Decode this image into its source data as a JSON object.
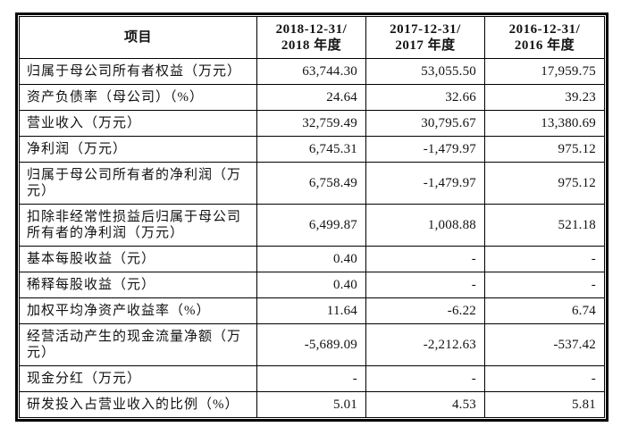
{
  "header": {
    "item_col": "项目",
    "periods": [
      {
        "line1": "2018-12-31/",
        "line2": "2018 年度"
      },
      {
        "line1": "2017-12-31/",
        "line2": "2017 年度"
      },
      {
        "line1": "2016-12-31/",
        "line2": "2016 年度"
      }
    ]
  },
  "rows": [
    {
      "label": "归属于母公司所有者权益（万元）",
      "y2018": "63,744.30",
      "y2017": "53,055.50",
      "y2016": "17,959.75"
    },
    {
      "label": "资产负债率（母公司）（%）",
      "y2018": "24.64",
      "y2017": "32.66",
      "y2016": "39.23"
    },
    {
      "label": "营业收入（万元）",
      "y2018": "32,759.49",
      "y2017": "30,795.67",
      "y2016": "13,380.69"
    },
    {
      "label": "净利润（万元）",
      "y2018": "6,745.31",
      "y2017": "-1,479.97",
      "y2016": "975.12"
    },
    {
      "label": "归属于母公司所有者的净利润（万元）",
      "y2018": "6,758.49",
      "y2017": "-1,479.97",
      "y2016": "975.12"
    },
    {
      "label": "扣除非经常性损益后归属于母公司所有者的净利润（万元）",
      "y2018": "6,499.87",
      "y2017": "1,008.88",
      "y2016": "521.18"
    },
    {
      "label": "基本每股收益（元）",
      "y2018": "0.40",
      "y2017": "-",
      "y2016": "-"
    },
    {
      "label": "稀释每股收益（元）",
      "y2018": "0.40",
      "y2017": "-",
      "y2016": "-"
    },
    {
      "label": "加权平均净资产收益率（%）",
      "y2018": "11.64",
      "y2017": "-6.22",
      "y2016": "6.74"
    },
    {
      "label": "经营活动产生的现金流量净额（万元）",
      "y2018": "-5,689.09",
      "y2017": "-2,212.63",
      "y2016": "-537.42"
    },
    {
      "label": "现金分红（万元）",
      "y2018": "-",
      "y2017": "-",
      "y2016": "-"
    },
    {
      "label": "研发投入占营业收入的比例（%）",
      "y2018": "5.01",
      "y2017": "4.53",
      "y2016": "5.81"
    }
  ]
}
